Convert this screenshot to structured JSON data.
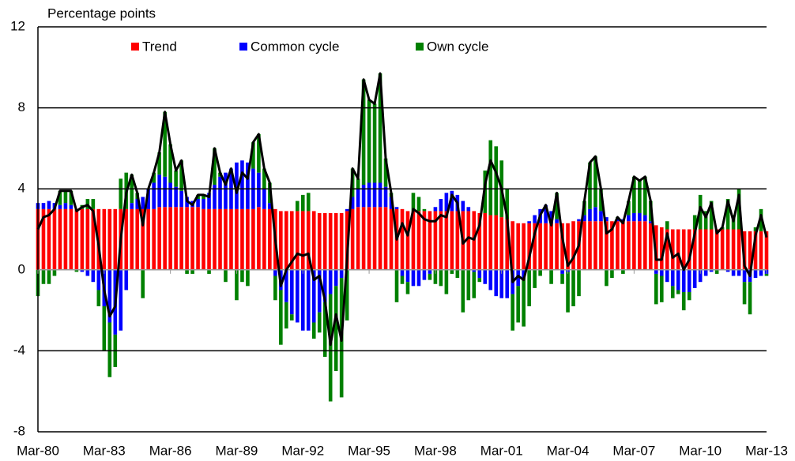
{
  "chart_data": {
    "type": "stacked-bar-line",
    "y_label": "Percentage points",
    "categories": [
      "Mar-80",
      null,
      null,
      null,
      null,
      null,
      null,
      null,
      null,
      null,
      null,
      null,
      "Mar-83",
      null,
      null,
      null,
      null,
      null,
      null,
      null,
      null,
      null,
      null,
      null,
      "Mar-86",
      null,
      null,
      null,
      null,
      null,
      null,
      null,
      null,
      null,
      null,
      null,
      "Mar-89",
      null,
      null,
      null,
      null,
      null,
      null,
      null,
      null,
      null,
      null,
      null,
      "Mar-92",
      null,
      null,
      null,
      null,
      null,
      null,
      null,
      null,
      null,
      null,
      null,
      "Mar-95",
      null,
      null,
      null,
      null,
      null,
      null,
      null,
      null,
      null,
      null,
      null,
      "Mar-98",
      null,
      null,
      null,
      null,
      null,
      null,
      null,
      null,
      null,
      null,
      null,
      "Mar-01",
      null,
      null,
      null,
      null,
      null,
      null,
      null,
      null,
      null,
      null,
      null,
      "Mar-04",
      null,
      null,
      null,
      null,
      null,
      null,
      null,
      null,
      null,
      null,
      null,
      "Mar-07",
      null,
      null,
      null,
      null,
      null,
      null,
      null,
      null,
      null,
      null,
      null,
      "Mar-10",
      null,
      null,
      null,
      null,
      null,
      null,
      null,
      null,
      null,
      null,
      null,
      "Mar-13"
    ],
    "series": [
      {
        "name": "Trend",
        "color": "#ff0000",
        "values": [
          3.0,
          3.0,
          3.0,
          3.0,
          3.0,
          3.0,
          3.0,
          3.0,
          3.0,
          3.0,
          3.0,
          3.0,
          3.0,
          3.0,
          3.0,
          3.0,
          3.0,
          3.0,
          3.0,
          3.0,
          3.0,
          3.0,
          3.1,
          3.1,
          3.1,
          3.1,
          3.1,
          3.1,
          3.1,
          3.1,
          3.0,
          3.0,
          3.0,
          3.0,
          3.0,
          3.0,
          3.0,
          3.0,
          3.0,
          3.0,
          3.1,
          3.0,
          3.0,
          3.0,
          2.9,
          2.9,
          2.9,
          2.9,
          2.9,
          2.9,
          2.9,
          2.8,
          2.8,
          2.8,
          2.8,
          2.8,
          2.9,
          3.0,
          3.1,
          3.1,
          3.1,
          3.1,
          3.1,
          3.1,
          3.0,
          3.0,
          3.0,
          2.9,
          2.9,
          2.9,
          2.9,
          2.9,
          2.9,
          2.9,
          2.9,
          2.9,
          2.9,
          2.9,
          2.9,
          2.9,
          2.8,
          2.8,
          2.7,
          2.7,
          2.6,
          2.5,
          2.4,
          2.3,
          2.3,
          2.3,
          2.3,
          2.3,
          2.3,
          2.3,
          2.3,
          2.3,
          2.3,
          2.4,
          2.4,
          2.4,
          2.4,
          2.4,
          2.4,
          2.4,
          2.4,
          2.4,
          2.4,
          2.4,
          2.4,
          2.4,
          2.4,
          2.3,
          2.2,
          2.1,
          2.0,
          2.0,
          2.0,
          2.0,
          2.0,
          2.0,
          2.0,
          2.0,
          2.0,
          2.0,
          2.0,
          2.0,
          2.0,
          2.0,
          1.9,
          1.9,
          1.9,
          1.9,
          1.9
        ]
      },
      {
        "name": "Common cycle",
        "color": "#0000ff",
        "values": [
          0.3,
          0.3,
          0.4,
          0.3,
          0.2,
          0.3,
          0.2,
          0.0,
          -0.1,
          -0.3,
          -0.6,
          -1.0,
          -1.8,
          -2.6,
          -3.2,
          -3.0,
          -1.0,
          0.3,
          0.5,
          0.6,
          1.0,
          1.3,
          1.6,
          1.5,
          1.2,
          1.0,
          0.8,
          0.5,
          0.3,
          0.4,
          0.5,
          0.8,
          1.2,
          1.6,
          1.8,
          2.0,
          2.3,
          2.4,
          2.3,
          2.0,
          1.7,
          1.0,
          0.3,
          -0.3,
          -1.0,
          -1.6,
          -2.2,
          -2.6,
          -3.0,
          -3.0,
          -2.6,
          -2.1,
          -1.6,
          -1.2,
          -0.8,
          -0.4,
          0.1,
          0.6,
          0.9,
          1.1,
          1.2,
          1.2,
          1.2,
          1.0,
          0.6,
          0.1,
          -0.3,
          -0.6,
          -0.8,
          -0.8,
          -0.5,
          -0.2,
          0.2,
          0.6,
          0.9,
          1.0,
          0.8,
          0.5,
          0.2,
          -0.1,
          -0.4,
          -0.7,
          -1.0,
          -1.3,
          -1.4,
          -1.4,
          -1.2,
          -0.8,
          -0.4,
          0.1,
          0.4,
          0.7,
          0.9,
          0.6,
          0.2,
          -0.2,
          -0.1,
          0.0,
          0.1,
          0.3,
          0.6,
          0.7,
          0.5,
          0.2,
          0.0,
          0.1,
          0.1,
          0.3,
          0.4,
          0.4,
          0.3,
          0.1,
          -0.2,
          -0.3,
          -0.6,
          -0.8,
          -1.0,
          -1.1,
          -1.1,
          -0.9,
          -0.6,
          -0.3,
          -0.1,
          0.0,
          0.0,
          -0.1,
          -0.3,
          -0.3,
          -0.6,
          -0.6,
          -0.4,
          -0.3,
          -0.2
        ]
      },
      {
        "name": "Own cycle",
        "color": "#008000",
        "values": [
          -1.3,
          -0.7,
          -0.7,
          -0.3,
          0.7,
          0.6,
          0.7,
          -0.1,
          0.2,
          0.5,
          0.5,
          -0.8,
          -2.2,
          -2.7,
          -1.6,
          1.5,
          1.8,
          1.4,
          0.3,
          -1.4,
          0.0,
          0.5,
          1.1,
          3.2,
          1.9,
          0.8,
          1.5,
          -0.2,
          -0.2,
          0.2,
          0.2,
          -0.2,
          1.8,
          0.2,
          -0.6,
          0.0,
          -1.5,
          -0.6,
          -0.8,
          1.3,
          1.9,
          1.0,
          1.0,
          -1.2,
          -2.7,
          -1.3,
          -0.3,
          0.5,
          0.8,
          0.9,
          -0.8,
          -1.0,
          -2.7,
          -5.3,
          -4.2,
          -5.9,
          -2.5,
          1.4,
          0.5,
          5.2,
          4.1,
          3.9,
          5.4,
          1.4,
          0.2,
          -1.6,
          -0.4,
          -0.6,
          0.9,
          0.7,
          0.1,
          -0.3,
          -0.7,
          -0.8,
          -1.2,
          -0.2,
          -0.4,
          -2.1,
          -1.5,
          -1.3,
          -0.2,
          2.1,
          3.7,
          3.4,
          2.8,
          1.5,
          -1.8,
          -1.8,
          -2.4,
          -1.8,
          -0.9,
          -0.3,
          0.0,
          -0.7,
          1.3,
          -0.5,
          -2.0,
          -1.8,
          -1.3,
          0.7,
          2.3,
          2.5,
          1.1,
          -0.8,
          -0.4,
          0.1,
          -0.2,
          0.7,
          1.8,
          1.6,
          1.9,
          1.0,
          -1.5,
          -1.3,
          0.4,
          -0.6,
          -0.2,
          -0.9,
          -0.4,
          0.7,
          1.7,
          0.9,
          1.4,
          -0.2,
          0.1,
          1.5,
          0.7,
          2.0,
          -1.1,
          -1.6,
          0.2,
          1.1,
          -0.1
        ]
      }
    ],
    "total": {
      "color": "#000000",
      "values": [
        2.0,
        2.6,
        2.7,
        3.0,
        3.9,
        3.9,
        3.9,
        2.9,
        3.1,
        3.2,
        2.9,
        1.2,
        -1.0,
        -2.3,
        -1.8,
        1.5,
        3.8,
        4.7,
        3.8,
        2.2,
        4.0,
        4.8,
        5.8,
        7.8,
        6.2,
        4.9,
        5.4,
        3.4,
        3.2,
        3.7,
        3.7,
        3.6,
        6.0,
        4.8,
        4.2,
        5.0,
        3.8,
        4.8,
        4.5,
        6.3,
        6.7,
        5.0,
        4.3,
        1.5,
        -0.8,
        0.0,
        0.4,
        0.8,
        0.7,
        0.8,
        -0.5,
        -0.3,
        -1.5,
        -3.7,
        -2.2,
        -3.5,
        0.5,
        5.0,
        4.5,
        9.4,
        8.4,
        8.2,
        9.7,
        5.5,
        3.8,
        1.5,
        2.3,
        1.7,
        3.0,
        2.8,
        2.5,
        2.4,
        2.4,
        2.7,
        2.6,
        3.7,
        3.3,
        1.3,
        1.6,
        1.5,
        2.2,
        4.2,
        5.4,
        4.8,
        4.0,
        2.6,
        -0.6,
        -0.3,
        -0.5,
        0.6,
        1.8,
        2.7,
        3.2,
        2.2,
        3.8,
        1.6,
        0.2,
        0.6,
        1.2,
        3.4,
        5.3,
        5.6,
        4.0,
        1.8,
        2.0,
        2.6,
        2.3,
        3.4,
        4.6,
        4.4,
        4.6,
        3.4,
        0.5,
        0.5,
        1.8,
        0.6,
        0.8,
        0.0,
        0.5,
        1.8,
        3.1,
        2.6,
        3.3,
        1.8,
        2.1,
        3.4,
        2.4,
        3.7,
        0.2,
        -0.3,
        1.7,
        2.7,
        1.6
      ]
    },
    "ylim": [
      -8,
      12
    ],
    "yticks": [
      -8,
      -4,
      0,
      4,
      8,
      12
    ],
    "grid": true
  }
}
